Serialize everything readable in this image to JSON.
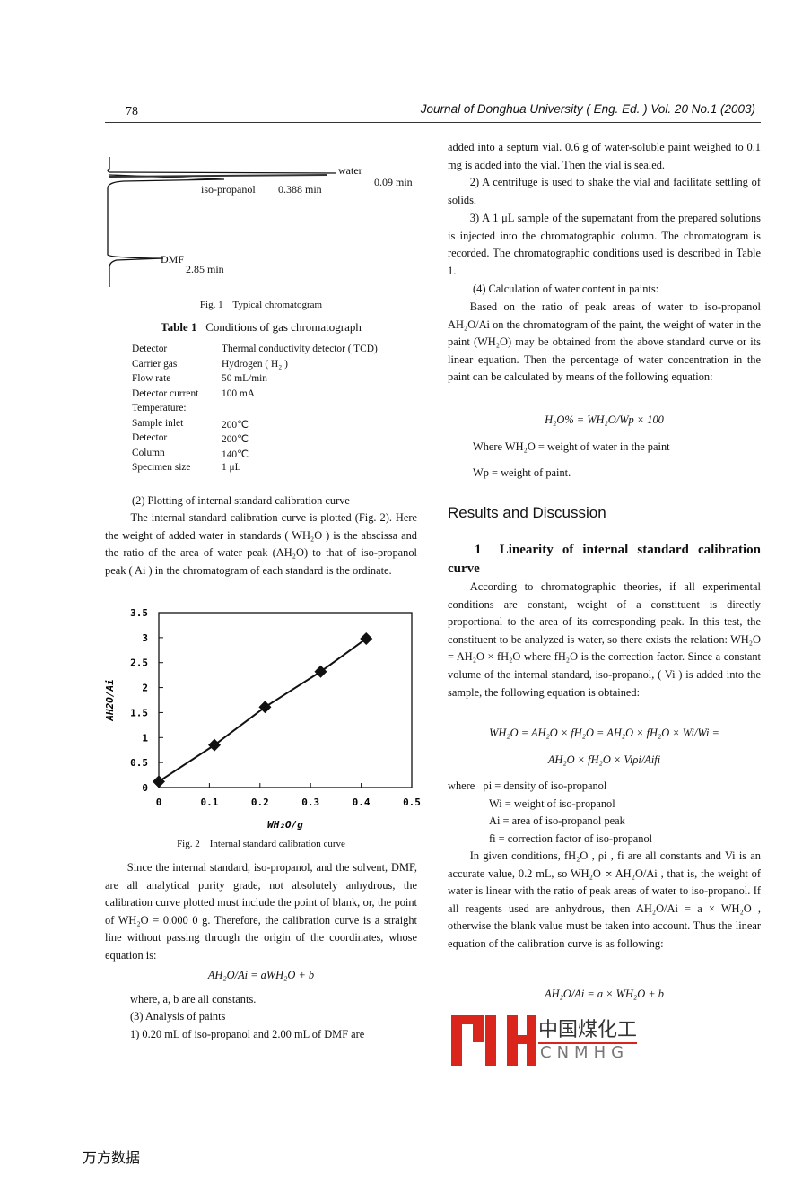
{
  "header": {
    "page_number": "78",
    "journal": "Journal of Donghua University ( Eng. Ed. ) Vol. 20 No.1 (2003)"
  },
  "fig1": {
    "labels": {
      "water": "water",
      "water_time": "0.09 min",
      "isopropanol": "iso-propanol",
      "isopropanol_time": "0.388 min",
      "dmf": "DMF",
      "dmf_time": "2.85 min"
    },
    "caption": "Fig. 1    Typical chromatogram"
  },
  "table1": {
    "title_bold": "Table 1",
    "title": "Conditions of gas chromatograph",
    "rows": [
      [
        "Detector",
        "Thermal conductivity detector ( TCD)"
      ],
      [
        "Carrier gas",
        "Hydrogen ( H₂ )"
      ],
      [
        "Flow rate",
        "50 mL/min"
      ],
      [
        "Detector current",
        "100 mA"
      ],
      [
        "Temperature:",
        ""
      ],
      [
        "Sample inlet",
        "200℃"
      ],
      [
        "Detector",
        "200℃"
      ],
      [
        "Column",
        "140℃"
      ],
      [
        "Specimen size",
        "1 μL"
      ]
    ]
  },
  "left": {
    "p1": "(2) Plotting of internal standard calibration curve",
    "p2": "The internal standard calibration curve is plotted (Fig. 2). Here the weight of added water in standards ( WH₂O ) is the abscissa and the ratio of the area of water peak (AH₂O) to that of iso-propanol peak ( Ai ) in the chromatogram of each standard is the ordinate.",
    "p3": "Since the internal standard, iso-propanol, and the solvent, DMF, are all analytical purity grade, not absolutely anhydrous, the calibration curve plotted must include the point of blank, or, the point of WH₂O = 0.000 0 g. Therefore, the calibration curve is a straight line without passing through the origin of the coordinates, whose equation is:",
    "eq1": "AH₂O/Ai = aWH₂O + b",
    "p4": "where, a, b are all constants.",
    "p5": "(3) Analysis of paints",
    "p6": "1) 0.20 mL of iso-propanol and 2.00 mL of DMF are"
  },
  "chart_data": {
    "type": "scatter",
    "caption": "Fig. 2    Internal standard calibration curve",
    "xlabel": "WH₂O/g",
    "ylabel": "AH2O/Ai",
    "xlim": [
      0,
      0.5
    ],
    "ylim": [
      0,
      3.5
    ],
    "xticks": [
      "0",
      "0.1",
      "0.2",
      "0.3",
      "0.4",
      "0.5"
    ],
    "yticks": [
      "0",
      "0.5",
      "1",
      "1.5",
      "2",
      "2.5",
      "3",
      "3.5"
    ],
    "x": [
      0,
      0.11,
      0.21,
      0.32,
      0.41
    ],
    "y": [
      0.12,
      0.85,
      1.61,
      2.32,
      2.98
    ],
    "grid": false,
    "marker": "diamond",
    "line": "connected"
  },
  "right": {
    "p1": "added into a septum vial. 0.6 g of water-soluble paint weighed to 0.1 mg is added into the vial. Then the vial is sealed.",
    "p2": "2) A centrifuge is used to shake the vial and facilitate settling of solids.",
    "p3": "3) A 1 μL sample of the supernatant from the prepared solutions is injected into the chromatographic column. The chromatogram is recorded. The chromatographic conditions used is described in Table 1.",
    "p4": "(4) Calculation of water content in paints:",
    "p5": "Based on the ratio of peak areas of water to iso-propanol AH₂O/Ai on the chromatogram of the paint, the weight of water in the paint (WH₂O) may be obtained from the above standard curve or its linear equation. Then the percentage of water concentration in the paint can be calculated by means of the following equation:",
    "eq1": "H₂O% = WH₂O/Wp × 100",
    "where1": "Where WH₂O = weight of water in the paint",
    "where2": "Wp = weight of paint.",
    "section": "Results and Discussion",
    "sub_num": "1",
    "sub_title": "Linearity of internal standard calibration curve",
    "p6": "According to chromatographic theories, if all experimental conditions are constant, weight of a constituent is directly proportional to the area of its corresponding peak. In this test, the constituent to be analyzed is water, so there exists the relation: WH₂O = AH₂O × fH₂O where fH₂O is the correction factor. Since a constant volume of the internal standard, iso-propanol, ( Vi ) is added into the sample, the following equation is obtained:",
    "eq2a": "WH₂O = AH₂O × fH₂O = AH₂O × fH₂O × Wi/Wi =",
    "eq2b": "AH₂O × fH₂O × Viρi/Aifi",
    "w1": "where   ρi = density of iso-propanol",
    "w2": "Wi = weight of iso-propanol",
    "w3": "Ai = area of iso-propanol peak",
    "w4": "fi = correction factor of iso-propanol",
    "p7": "In given conditions, fH₂O , ρi , fi are all constants and Vi is an accurate value, 0.2 mL, so WH₂O ∝ AH₂O/Ai , that is, the weight of water is linear with the ratio of peak areas of water to iso-propanol. If all reagents used are anhydrous, then AH₂O/Ai = a × WH₂O , otherwise the blank value must be taken into account. Thus the linear equation of the calibration curve is as following:",
    "eq3": "AH₂O/Ai = a × WH₂O + b"
  },
  "watermark": {
    "logo_cn": "中国煤化工",
    "logo_en": "CNMHG",
    "color": "#d9251c"
  },
  "footer": {
    "source": "万方数据"
  }
}
